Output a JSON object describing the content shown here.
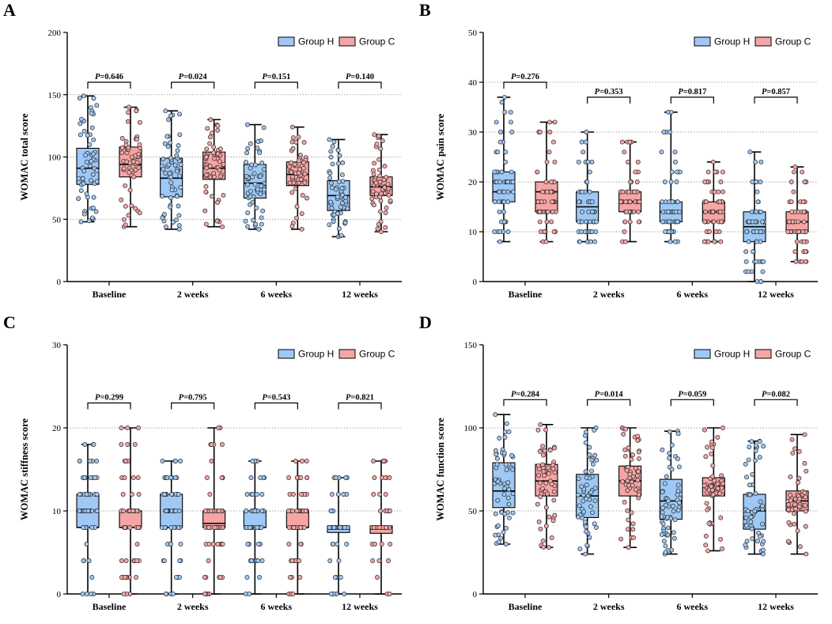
{
  "group_h_color": "#9ec8f5",
  "group_c_color": "#f5a5a5",
  "chart_data": [
    {
      "panel": "A",
      "type": "box",
      "ylabel": "WOMAC total score",
      "ylim": [
        0,
        200
      ],
      "yticks": [
        0,
        50,
        100,
        150,
        200
      ],
      "gridlines": [
        50,
        100,
        150
      ],
      "categories": [
        "Baseline",
        "2 weeks",
        "6 weeks",
        "12 weeks"
      ],
      "legend": [
        "Group H",
        "Group C"
      ],
      "p_values": [
        "=0.646",
        "=0.024",
        "=0.151",
        "=0.140"
      ],
      "bracket_y": 160,
      "series": [
        {
          "name": "Group H",
          "boxes": [
            {
              "min": 48,
              "q1": 78,
              "median": 91,
              "q3": 107,
              "max": 149
            },
            {
              "min": 42,
              "q1": 68,
              "median": 83,
              "q3": 99,
              "max": 137
            },
            {
              "min": 42,
              "q1": 67,
              "median": 79,
              "q3": 94,
              "max": 126
            },
            {
              "min": 36,
              "q1": 57,
              "median": 69,
              "q3": 81,
              "max": 114
            }
          ]
        },
        {
          "name": "Group C",
          "boxes": [
            {
              "min": 44,
              "q1": 84,
              "median": 94,
              "q3": 108,
              "max": 140
            },
            {
              "min": 44,
              "q1": 82,
              "median": 91,
              "q3": 104,
              "max": 130
            },
            {
              "min": 42,
              "q1": 77,
              "median": 86,
              "q3": 96,
              "max": 124
            },
            {
              "min": 40,
              "q1": 69,
              "median": 76,
              "q3": 84,
              "max": 118
            }
          ]
        }
      ]
    },
    {
      "panel": "B",
      "type": "box",
      "ylabel": "WOMAC pain score",
      "ylim": [
        0,
        50
      ],
      "yticks": [
        0,
        10,
        20,
        30,
        40,
        50
      ],
      "gridlines": [
        10,
        20,
        30,
        40
      ],
      "categories": [
        "Baseline",
        "2 weeks",
        "6 weeks",
        "12 weeks"
      ],
      "legend": [
        "Group H",
        "Group C"
      ],
      "p_values": [
        "=0.276",
        "=0.353",
        "=0.817",
        "=0.857"
      ],
      "bracket_y": [
        40,
        37,
        37,
        37
      ],
      "series": [
        {
          "name": "Group H",
          "boxes": [
            {
              "min": 8,
              "q1": 16,
              "median": 18,
              "q3": 22,
              "max": 37
            },
            {
              "min": 8,
              "q1": 12,
              "median": 15,
              "q3": 18,
              "max": 30
            },
            {
              "min": 8,
              "q1": 12,
              "median": 14,
              "q3": 16,
              "max": 34
            },
            {
              "min": 0,
              "q1": 8,
              "median": 11,
              "q3": 14,
              "max": 26
            }
          ]
        },
        {
          "name": "Group C",
          "boxes": [
            {
              "min": 8,
              "q1": 14,
              "median": 18,
              "q3": 20,
              "max": 32
            },
            {
              "min": 8,
              "q1": 14,
              "median": 16,
              "q3": 18,
              "max": 28
            },
            {
              "min": 8,
              "q1": 12,
              "median": 14,
              "q3": 16,
              "max": 24
            },
            {
              "min": 4,
              "q1": 10,
              "median": 12,
              "q3": 14,
              "max": 23
            }
          ]
        }
      ]
    },
    {
      "panel": "C",
      "type": "box",
      "ylabel": "WOMAC stiffness score",
      "ylim": [
        0,
        30
      ],
      "yticks": [
        0,
        10,
        20,
        30
      ],
      "gridlines": [
        10,
        20
      ],
      "categories": [
        "Baseline",
        "2 weeks",
        "6 weeks",
        "12 weeks"
      ],
      "legend": [
        "Group H",
        "Group C"
      ],
      "p_values": [
        "=0.299",
        "=0.795",
        "=0.543",
        "=0.821"
      ],
      "bracket_y": 23,
      "series": [
        {
          "name": "Group H",
          "boxes": [
            {
              "min": 0,
              "q1": 8,
              "median": 8,
              "q3": 12,
              "max": 18
            },
            {
              "min": 0,
              "q1": 8,
              "median": 8,
              "q3": 12,
              "max": 16
            },
            {
              "min": 0,
              "q1": 8,
              "median": 8,
              "q3": 10,
              "max": 16
            },
            {
              "min": 0,
              "q1": 7.4,
              "median": 8,
              "q3": 8.2,
              "max": 14
            }
          ]
        },
        {
          "name": "Group C",
          "boxes": [
            {
              "min": 0,
              "q1": 8,
              "median": 8,
              "q3": 10,
              "max": 20
            },
            {
              "min": 0,
              "q1": 8,
              "median": 8.5,
              "q3": 10,
              "max": 20
            },
            {
              "min": 0,
              "q1": 8,
              "median": 8,
              "q3": 10,
              "max": 16
            },
            {
              "min": 0,
              "q1": 7.3,
              "median": 8,
              "q3": 8.2,
              "max": 16
            }
          ]
        }
      ]
    },
    {
      "panel": "D",
      "type": "box",
      "ylabel": "WOMAC function score",
      "ylim": [
        0,
        150
      ],
      "yticks": [
        0,
        50,
        100,
        150
      ],
      "gridlines": [
        50,
        100
      ],
      "categories": [
        "Baseline",
        "2 weeks",
        "6 weeks",
        "12 weeks"
      ],
      "legend": [
        "Group H",
        "Group C"
      ],
      "p_values": [
        "=0.284",
        "=0.014",
        "=0.059",
        "=0.082"
      ],
      "bracket_y": 117,
      "series": [
        {
          "name": "Group H",
          "boxes": [
            {
              "min": 30,
              "q1": 52,
              "median": 62,
              "q3": 79,
              "max": 108
            },
            {
              "min": 24,
              "q1": 46,
              "median": 59,
              "q3": 72,
              "max": 100
            },
            {
              "min": 24,
              "q1": 45,
              "median": 56,
              "q3": 69,
              "max": 98
            },
            {
              "min": 24,
              "q1": 39,
              "median": 50,
              "q3": 60,
              "max": 92
            }
          ]
        },
        {
          "name": "Group C",
          "boxes": [
            {
              "min": 28,
              "q1": 59,
              "median": 68,
              "q3": 78,
              "max": 102
            },
            {
              "min": 28,
              "q1": 59,
              "median": 68,
              "q3": 77,
              "max": 100
            },
            {
              "min": 26,
              "q1": 59,
              "median": 65,
              "q3": 70,
              "max": 100
            },
            {
              "min": 24,
              "q1": 50,
              "median": 56,
              "q3": 62,
              "max": 96
            }
          ]
        }
      ]
    }
  ]
}
